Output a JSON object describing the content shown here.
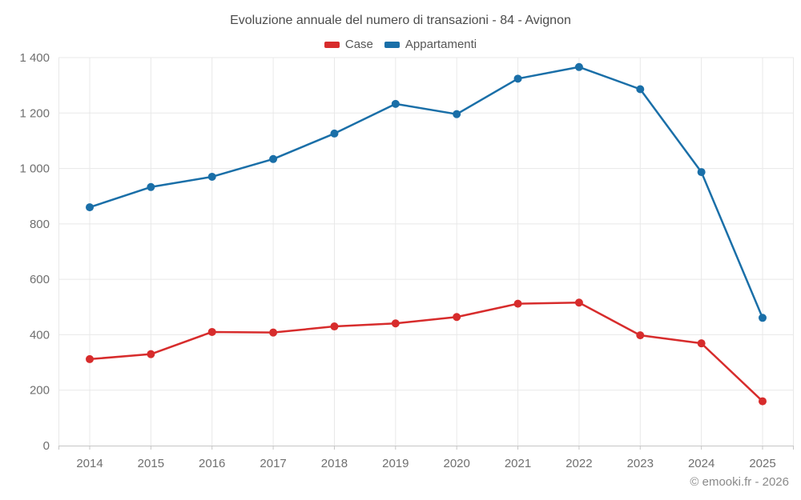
{
  "title": "Evoluzione annuale del numero di transazioni - 84 - Avignon",
  "footer": "© emooki.fr - 2026",
  "legend": {
    "items": [
      {
        "label": "Case",
        "color": "#d72c2c"
      },
      {
        "label": "Appartamenti",
        "color": "#1a6fa8"
      }
    ]
  },
  "chart_data": {
    "type": "line",
    "title": "Evoluzione annuale del numero di transazioni - 84 - Avignon",
    "categories": [
      "2014",
      "2015",
      "2016",
      "2017",
      "2018",
      "2019",
      "2020",
      "2021",
      "2022",
      "2023",
      "2024",
      "2025"
    ],
    "series": [
      {
        "name": "Case",
        "color": "#d72c2c",
        "values": [
          312,
          330,
          410,
          408,
          430,
          441,
          464,
          512,
          516,
          398,
          369,
          160
        ]
      },
      {
        "name": "Appartamenti",
        "color": "#1a6fa8",
        "values": [
          860,
          933,
          970,
          1034,
          1126,
          1233,
          1196,
          1324,
          1366,
          1286,
          987,
          461
        ]
      }
    ],
    "xlabel": "",
    "ylabel": "",
    "ylim": [
      0,
      1400
    ],
    "ytick_interval": 200,
    "ytick_labels": [
      "0",
      "200",
      "400",
      "600",
      "800",
      "1 000",
      "1 200",
      "1 400"
    ],
    "grid": true,
    "legend_position": "top-center"
  }
}
